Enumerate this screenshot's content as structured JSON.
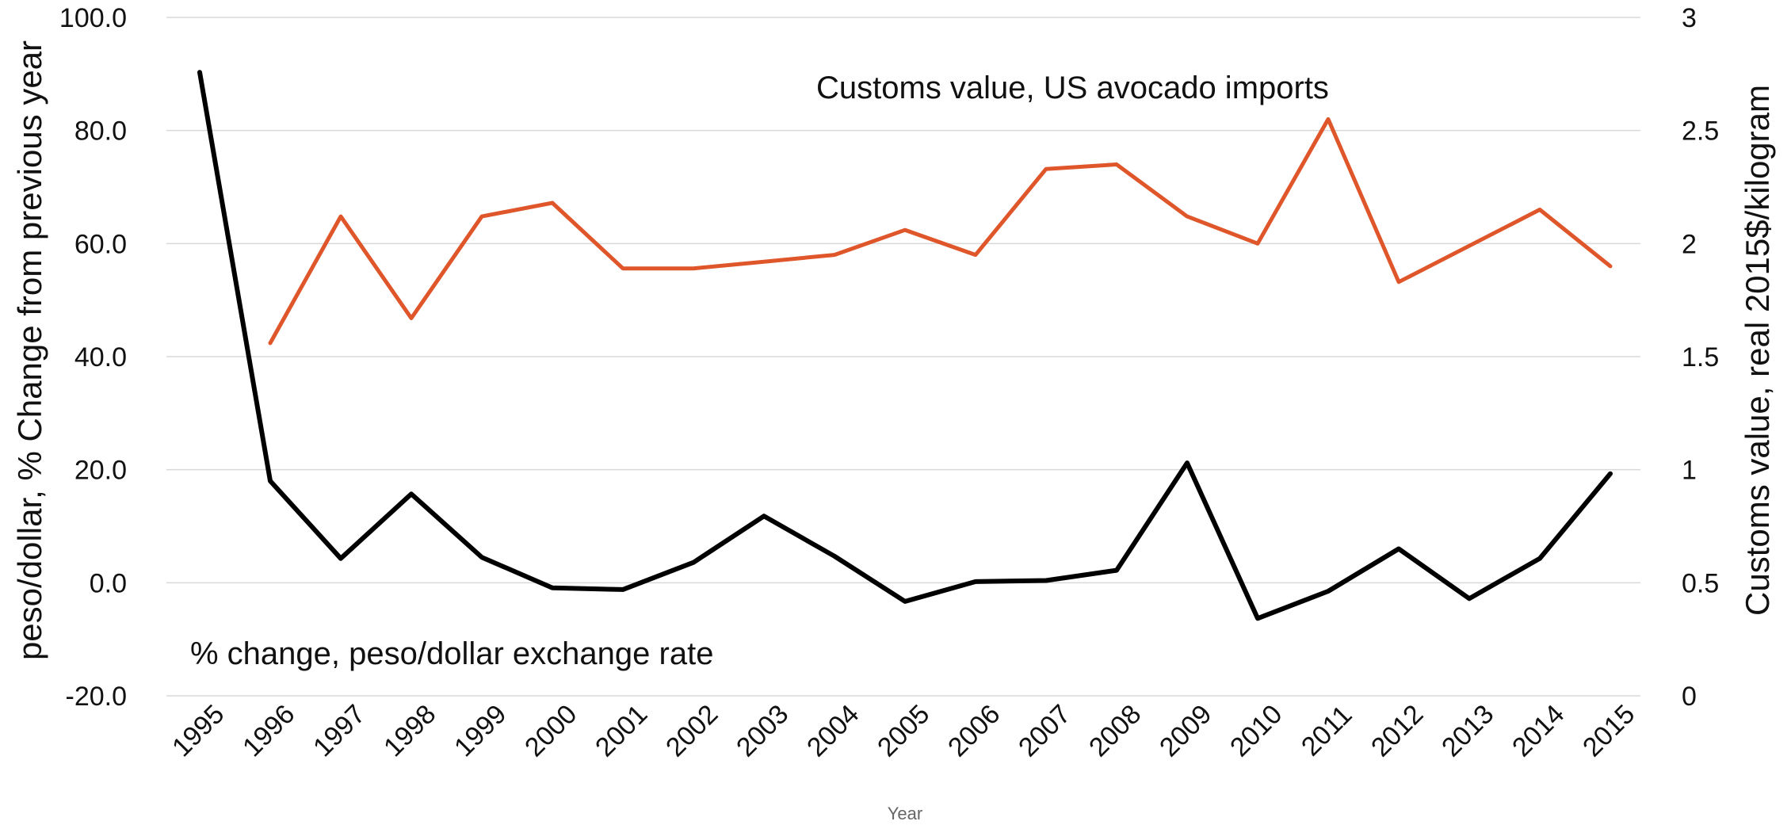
{
  "chart_data": {
    "type": "line",
    "categories": [
      "1995",
      "1996",
      "1997",
      "1998",
      "1999",
      "2000",
      "2001",
      "2002",
      "2003",
      "2004",
      "2005",
      "2006",
      "2007",
      "2008",
      "2009",
      "2010",
      "2011",
      "2012",
      "2013",
      "2014",
      "2015"
    ],
    "xlabel": "Year",
    "ylabel_left": "peso/dollar, % Change from previous year",
    "ylabel_right": "Customs value, real 2015$/kilogram",
    "ylim_left": [
      -20,
      100
    ],
    "ylim_right": [
      0,
      3
    ],
    "yticks_left": [
      "-20.0",
      "0.0",
      "20.0",
      "40.0",
      "60.0",
      "80.0",
      "100.0"
    ],
    "yticks_right": [
      "0",
      "0.5",
      "1",
      "1.5",
      "2",
      "2.5",
      "3"
    ],
    "grid": true,
    "series": [
      {
        "name": "% change, peso/dollar exchange rate",
        "axis": "left",
        "color": "#000000",
        "values": [
          90.3,
          18.0,
          4.3,
          15.7,
          4.5,
          -0.9,
          -1.2,
          3.6,
          11.8,
          4.7,
          -3.3,
          0.2,
          0.4,
          2.2,
          21.2,
          -6.3,
          -1.5,
          6.0,
          -2.8,
          4.3,
          19.3
        ]
      },
      {
        "name": "Customs value, US avocado imports",
        "axis": "right",
        "color": "#e0562b",
        "values": [
          null,
          1.56,
          2.12,
          1.67,
          2.12,
          2.18,
          1.89,
          1.89,
          1.92,
          1.95,
          2.06,
          1.95,
          2.33,
          2.35,
          2.12,
          2.0,
          2.55,
          1.83,
          1.99,
          2.15,
          1.9
        ]
      }
    ],
    "annotations": {
      "top": "Customs value, US avocado imports",
      "bottom": "% change, peso/dollar exchange rate"
    }
  }
}
